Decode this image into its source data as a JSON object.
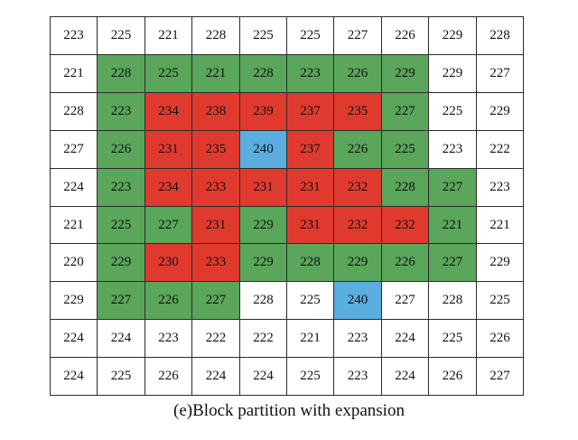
{
  "colors": {
    "w": "#ffffff",
    "g": "#5aa65a",
    "r": "#e03a2f",
    "b": "#5aaee0"
  },
  "grid": {
    "values": [
      [
        223,
        225,
        221,
        228,
        225,
        225,
        227,
        226,
        229,
        228
      ],
      [
        221,
        228,
        225,
        221,
        228,
        223,
        226,
        229,
        229,
        227
      ],
      [
        228,
        223,
        234,
        238,
        239,
        237,
        235,
        227,
        225,
        229
      ],
      [
        227,
        226,
        231,
        235,
        240,
        237,
        226,
        225,
        223,
        222
      ],
      [
        224,
        223,
        234,
        233,
        231,
        231,
        232,
        228,
        227,
        223
      ],
      [
        221,
        225,
        227,
        231,
        229,
        231,
        232,
        232,
        221,
        221
      ],
      [
        220,
        229,
        230,
        233,
        229,
        228,
        229,
        226,
        227,
        229
      ],
      [
        229,
        227,
        226,
        227,
        228,
        225,
        240,
        227,
        228,
        225
      ],
      [
        224,
        224,
        223,
        222,
        222,
        221,
        223,
        224,
        225,
        226
      ],
      [
        224,
        225,
        226,
        224,
        224,
        225,
        223,
        224,
        226,
        227
      ]
    ],
    "fills": [
      [
        "w",
        "w",
        "w",
        "w",
        "w",
        "w",
        "w",
        "w",
        "w",
        "w"
      ],
      [
        "w",
        "g",
        "g",
        "g",
        "g",
        "g",
        "g",
        "g",
        "w",
        "w"
      ],
      [
        "w",
        "g",
        "r",
        "r",
        "r",
        "r",
        "r",
        "g",
        "w",
        "w"
      ],
      [
        "w",
        "g",
        "r",
        "r",
        "b",
        "r",
        "g",
        "g",
        "w",
        "w"
      ],
      [
        "w",
        "g",
        "r",
        "r",
        "r",
        "r",
        "r",
        "g",
        "g",
        "w"
      ],
      [
        "w",
        "g",
        "g",
        "r",
        "g",
        "r",
        "r",
        "r",
        "g",
        "w"
      ],
      [
        "w",
        "g",
        "r",
        "r",
        "g",
        "g",
        "g",
        "g",
        "g",
        "w"
      ],
      [
        "w",
        "g",
        "g",
        "g",
        "w",
        "w",
        "b",
        "w",
        "w",
        "w"
      ],
      [
        "w",
        "w",
        "w",
        "w",
        "w",
        "w",
        "w",
        "w",
        "w",
        "w"
      ],
      [
        "w",
        "w",
        "w",
        "w",
        "w",
        "w",
        "w",
        "w",
        "w",
        "w"
      ]
    ]
  },
  "caption": "(e)Block partition with expansion"
}
